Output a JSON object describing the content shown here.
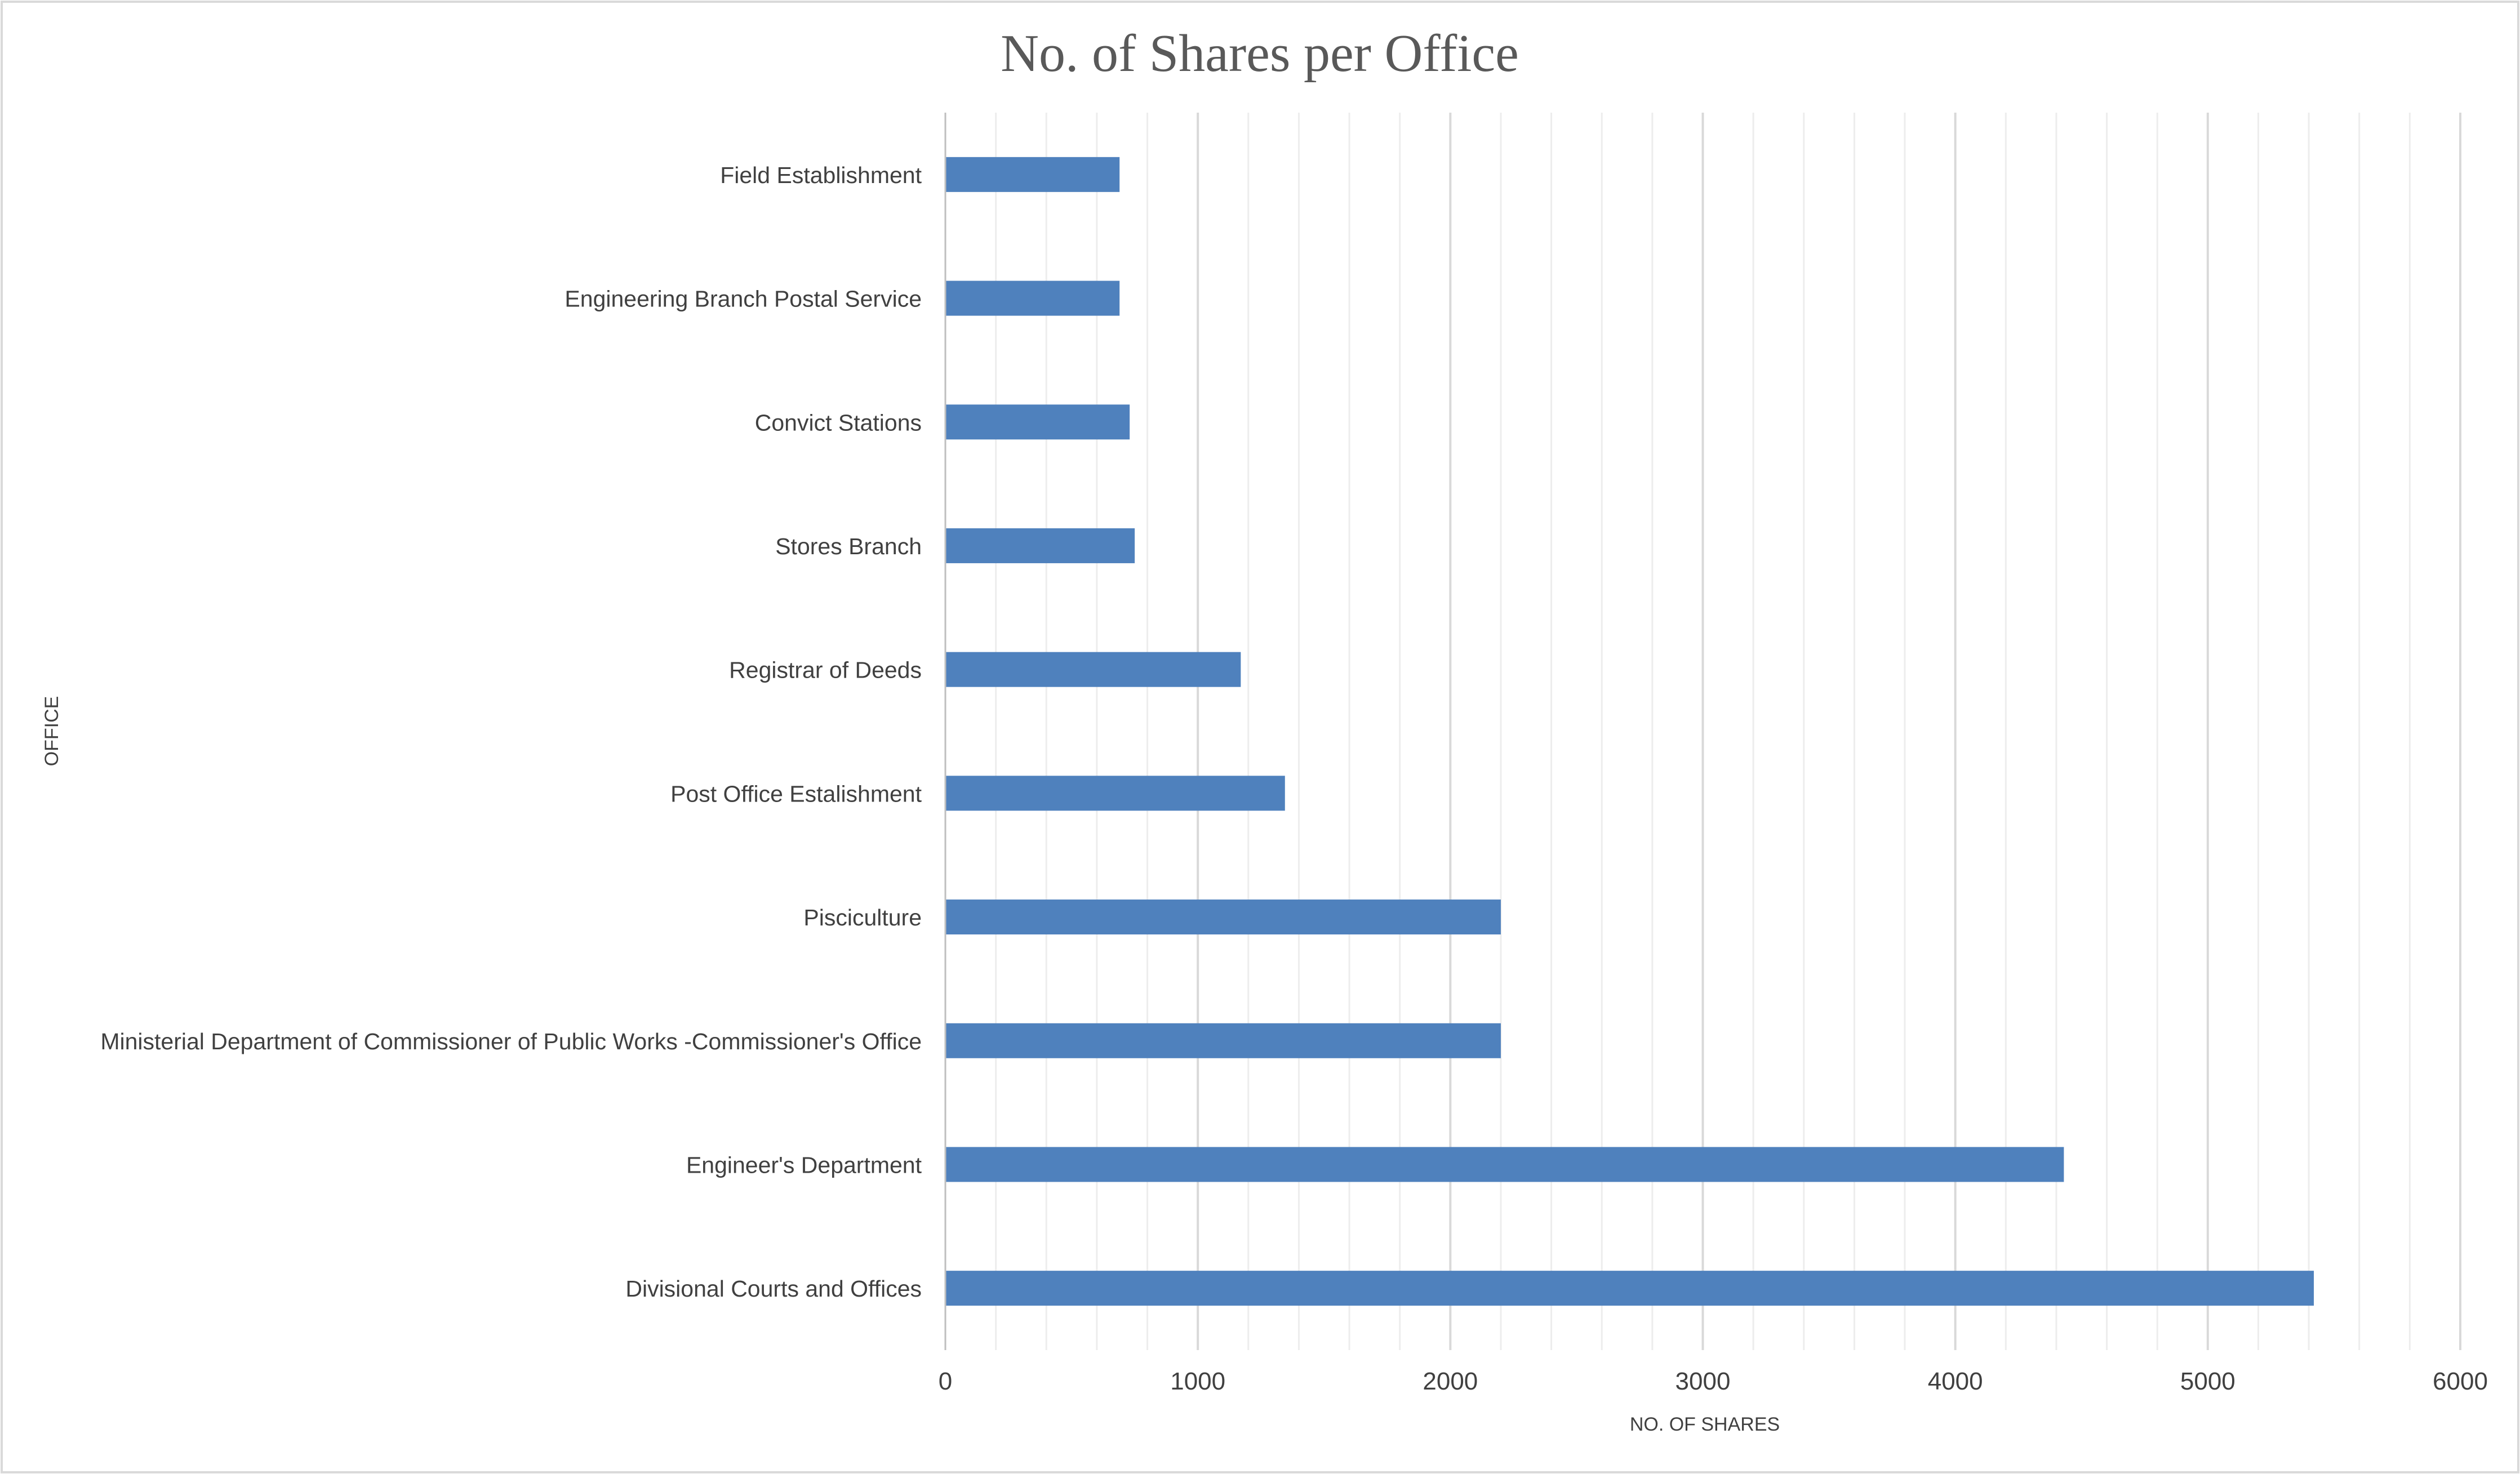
{
  "chart_data": {
    "type": "bar",
    "orientation": "horizontal",
    "title": "No. of Shares per Office",
    "xlabel": "NO. OF SHARES",
    "ylabel": "OFFICE",
    "categories": [
      "Divisional Courts and Offices",
      "Engineer's Department",
      "Ministerial Department of Commissioner of Public Works -Commissioner's Office",
      "Pisciculture",
      "Post Office Estalishment",
      "Registrar of Deeds",
      "Stores Branch",
      "Convict Stations",
      "Engineering Branch Postal Service",
      "Field Establishment"
    ],
    "values": [
      5420,
      4430,
      2200,
      2200,
      1345,
      1170,
      750,
      730,
      690,
      690
    ],
    "xlim": [
      0,
      6000
    ],
    "xticks": [
      "0",
      "1000",
      "2000",
      "3000",
      "4000",
      "5000",
      "6000"
    ],
    "gridlines": "vertical major and minor",
    "legend": "none",
    "colors": {
      "bar": "#4F81BD",
      "major_grid": "#D9D9D9",
      "minor_grid": "#EDEDED",
      "axis_line": "#BFBFBF",
      "frame": "#D9D9D9"
    }
  }
}
